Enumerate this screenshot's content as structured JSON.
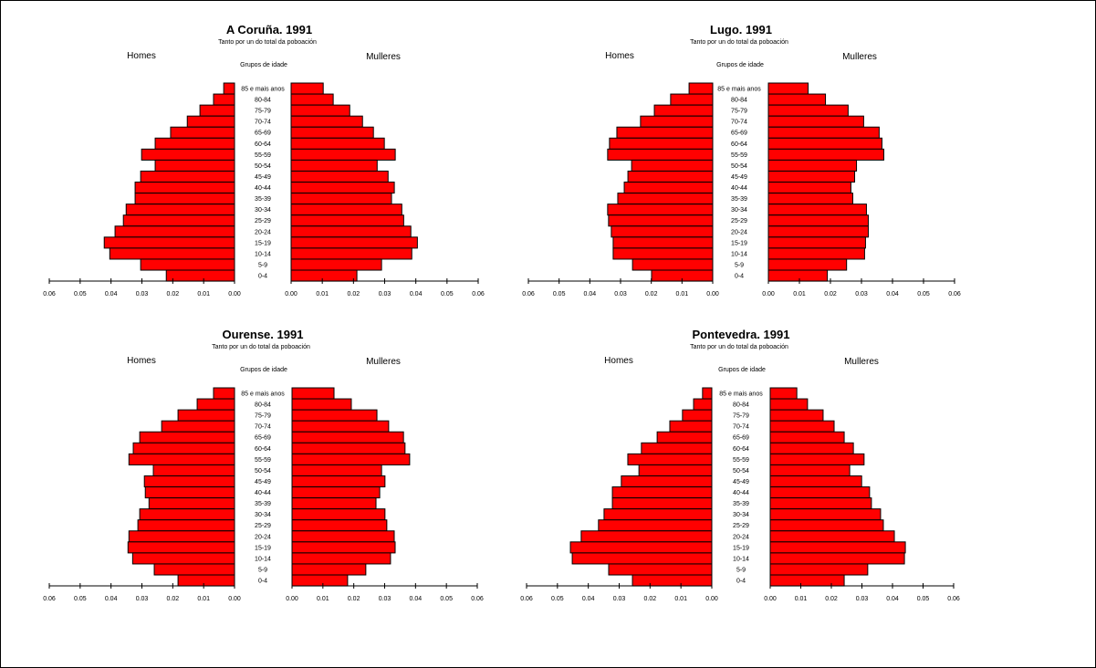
{
  "figure": {
    "subtitle": "Tanto por un do total da poboación",
    "left_label": "Homes",
    "right_label": "Mulleres",
    "category_label": "Grupos de idade"
  },
  "colors": {
    "bar": "#ff0000",
    "outline": "#000000"
  },
  "chart_data": [
    {
      "type": "bar",
      "orientation": "horizontal-population-pyramid",
      "title": "A Coruña. 1991",
      "subtitle": "Tanto por un do total da poboación",
      "categories": [
        "85 e mais anos",
        "80-84",
        "75-79",
        "70-74",
        "65-69",
        "60-64",
        "55-59",
        "50-54",
        "45-49",
        "40-44",
        "35-39",
        "30-34",
        "25-29",
        "20-24",
        "15-19",
        "10-14",
        "5-9",
        "0-4"
      ],
      "series": [
        {
          "name": "Homes",
          "values": [
            0.0035,
            0.0068,
            0.0112,
            0.0153,
            0.0207,
            0.0257,
            0.0301,
            0.0257,
            0.0304,
            0.0322,
            0.0322,
            0.0351,
            0.036,
            0.0387,
            0.0422,
            0.0404,
            0.0304,
            0.0221
          ]
        },
        {
          "name": "Mulleres",
          "values": [
            0.0103,
            0.0135,
            0.0188,
            0.0229,
            0.0264,
            0.0299,
            0.0334,
            0.0276,
            0.0311,
            0.0331,
            0.0322,
            0.0355,
            0.0361,
            0.0384,
            0.0405,
            0.0387,
            0.029,
            0.0211
          ]
        }
      ],
      "xlim": [
        0,
        0.06
      ],
      "xticks": [
        "0.06",
        "0.05",
        "0.04",
        "0.03",
        "0.02",
        "0.01",
        "0.00"
      ],
      "xticks_right": [
        "0.00",
        "0.01",
        "0.02",
        "0.03",
        "0.04",
        "0.05",
        "0.06"
      ],
      "ylabel": "Grupos de idade"
    },
    {
      "type": "bar",
      "orientation": "horizontal-population-pyramid",
      "title": "Lugo. 1991",
      "subtitle": "Tanto por un do total da poboación",
      "categories": [
        "85 e mais anos",
        "80-84",
        "75-79",
        "70-74",
        "65-69",
        "60-64",
        "55-59",
        "50-54",
        "45-49",
        "40-44",
        "35-39",
        "30-34",
        "25-29",
        "20-24",
        "15-19",
        "10-14",
        "5-9",
        "0-4"
      ],
      "series": [
        {
          "name": "Homes",
          "values": [
            0.0077,
            0.0137,
            0.019,
            0.0235,
            0.0312,
            0.0336,
            0.0342,
            0.0264,
            0.0276,
            0.0288,
            0.0309,
            0.0342,
            0.0339,
            0.033,
            0.0324,
            0.0324,
            0.0261,
            0.0199
          ]
        },
        {
          "name": "Mulleres",
          "values": [
            0.0128,
            0.0184,
            0.0257,
            0.0307,
            0.0357,
            0.0366,
            0.0372,
            0.0284,
            0.0278,
            0.0266,
            0.0272,
            0.0316,
            0.0322,
            0.0322,
            0.0313,
            0.031,
            0.0252,
            0.019
          ]
        }
      ],
      "xlim": [
        0,
        0.06
      ],
      "xticks": [
        "0.06",
        "0.05",
        "0.04",
        "0.03",
        "0.02",
        "0.01",
        "0.00"
      ],
      "xticks_right": [
        "0.00",
        "0.01",
        "0.02",
        "0.03",
        "0.04",
        "0.05",
        "0.06"
      ],
      "ylabel": "Grupos de idade"
    },
    {
      "type": "bar",
      "orientation": "horizontal-population-pyramid",
      "title": "Ourense. 1991",
      "subtitle": "Tanto por un do total da poboación",
      "categories": [
        "85 e mais anos",
        "80-84",
        "75-79",
        "70-74",
        "65-69",
        "60-64",
        "55-59",
        "50-54",
        "45-49",
        "40-44",
        "35-39",
        "30-34",
        "25-29",
        "20-24",
        "15-19",
        "10-14",
        "5-9",
        "0-4"
      ],
      "series": [
        {
          "name": "Homes",
          "values": [
            0.0068,
            0.0121,
            0.0183,
            0.0236,
            0.0307,
            0.0328,
            0.0342,
            0.0263,
            0.0292,
            0.0289,
            0.0277,
            0.0307,
            0.0313,
            0.0342,
            0.0345,
            0.033,
            0.026,
            0.0183
          ]
        },
        {
          "name": "Mulleres",
          "values": [
            0.0136,
            0.0192,
            0.0275,
            0.0313,
            0.0361,
            0.0366,
            0.0381,
            0.029,
            0.0301,
            0.0284,
            0.0272,
            0.0301,
            0.0307,
            0.0331,
            0.0334,
            0.0319,
            0.0239,
            0.018
          ]
        }
      ],
      "xlim": [
        0,
        0.06
      ],
      "xticks": [
        "0.06",
        "0.05",
        "0.04",
        "0.03",
        "0.02",
        "0.01",
        "0.00"
      ],
      "xticks_right": [
        "0.00",
        "0.01",
        "0.02",
        "0.03",
        "0.04",
        "0.05",
        "0.06"
      ],
      "ylabel": "Grupos de idade"
    },
    {
      "type": "bar",
      "orientation": "horizontal-population-pyramid",
      "title": "Pontevedra. 1991",
      "subtitle": "Tanto por un do total da poboación",
      "categories": [
        "85 e mais anos",
        "80-84",
        "75-79",
        "70-74",
        "65-69",
        "60-64",
        "55-59",
        "50-54",
        "45-49",
        "40-44",
        "35-39",
        "30-34",
        "25-29",
        "20-24",
        "15-19",
        "10-14",
        "5-9",
        "0-4"
      ],
      "series": [
        {
          "name": "Homes",
          "values": [
            0.003,
            0.0059,
            0.0095,
            0.0136,
            0.0177,
            0.0228,
            0.0272,
            0.0236,
            0.0293,
            0.0322,
            0.0322,
            0.0349,
            0.0367,
            0.0423,
            0.0458,
            0.0452,
            0.0334,
            0.0257
          ]
        },
        {
          "name": "Mulleres",
          "values": [
            0.0087,
            0.0122,
            0.0173,
            0.0209,
            0.0242,
            0.0272,
            0.0307,
            0.026,
            0.0299,
            0.0325,
            0.0331,
            0.0361,
            0.037,
            0.0406,
            0.0442,
            0.0439,
            0.0319,
            0.0242
          ]
        }
      ],
      "xlim": [
        0,
        0.06
      ],
      "xticks": [
        "0.06",
        "0.05",
        "0.04",
        "0.03",
        "0.02",
        "0.01",
        "0.00"
      ],
      "xticks_right": [
        "0.00",
        "0.01",
        "0.02",
        "0.03",
        "0.04",
        "0.05",
        "0.06"
      ],
      "ylabel": "Grupos de idade"
    }
  ]
}
